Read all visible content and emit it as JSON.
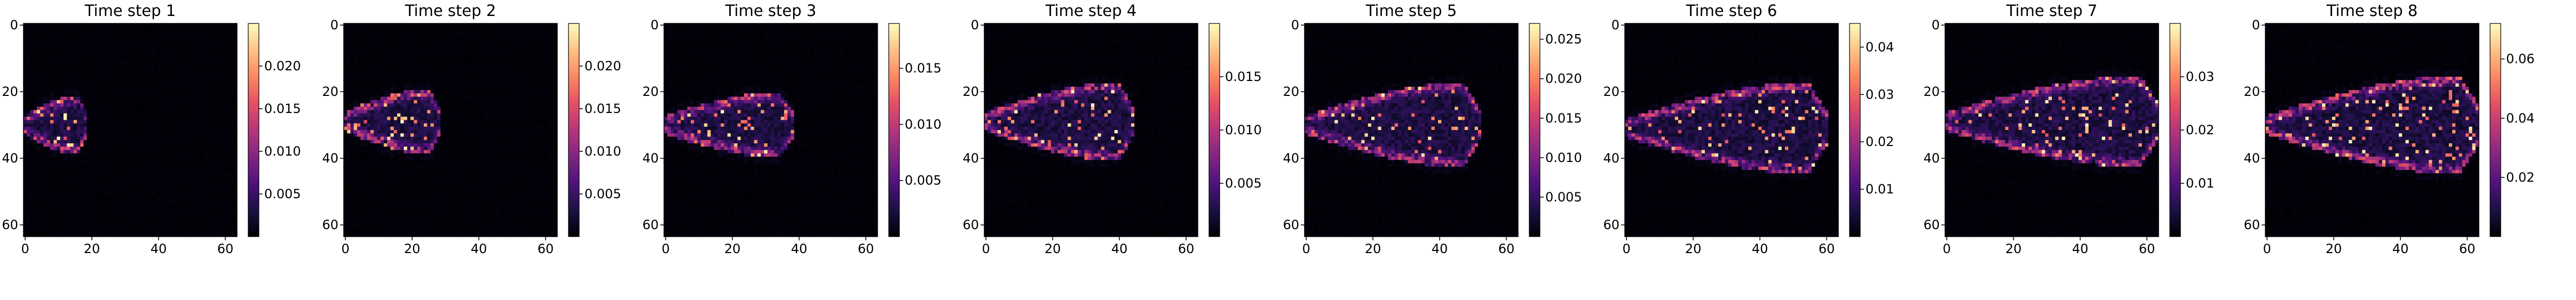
{
  "chart_data": [
    {
      "type": "heatmap",
      "title": "Time step 1",
      "xticks": [
        0,
        20,
        40,
        60
      ],
      "yticks": [
        0,
        20,
        40,
        60
      ],
      "grid_size": 64,
      "colormap": "magma",
      "colorbar": {
        "range": [
          0,
          0.025
        ],
        "ticks": [
          0.005,
          0.01,
          0.015,
          0.02
        ],
        "tick_labels": [
          "0.005",
          "0.010",
          "0.015",
          "0.020"
        ]
      },
      "front_x": 18,
      "center_y": 30,
      "peak": 0.025,
      "head_half_width": 9
    },
    {
      "type": "heatmap",
      "title": "Time step 2",
      "xticks": [
        0,
        20,
        40,
        60
      ],
      "yticks": [
        0,
        20,
        40,
        60
      ],
      "grid_size": 64,
      "colormap": "magma",
      "colorbar": {
        "range": [
          0,
          0.025
        ],
        "ticks": [
          0.005,
          0.01,
          0.015,
          0.02
        ],
        "tick_labels": [
          "0.005",
          "0.010",
          "0.015",
          "0.020"
        ]
      },
      "front_x": 28,
      "center_y": 29,
      "peak": 0.025,
      "head_half_width": 10
    },
    {
      "type": "heatmap",
      "title": "Time step 3",
      "xticks": [
        0,
        20,
        40,
        60
      ],
      "yticks": [
        0,
        20,
        40,
        60
      ],
      "grid_size": 64,
      "colormap": "magma",
      "colorbar": {
        "range": [
          0,
          0.019
        ],
        "ticks": [
          0.005,
          0.01,
          0.015
        ],
        "tick_labels": [
          "0.005",
          "0.010",
          "0.015"
        ]
      },
      "front_x": 38,
      "center_y": 30,
      "peak": 0.019,
      "head_half_width": 10
    },
    {
      "type": "heatmap",
      "title": "Time step 4",
      "xticks": [
        0,
        20,
        40,
        60
      ],
      "yticks": [
        0,
        20,
        40,
        60
      ],
      "grid_size": 64,
      "colormap": "magma",
      "colorbar": {
        "range": [
          0,
          0.02
        ],
        "ticks": [
          0.005,
          0.01,
          0.015
        ],
        "tick_labels": [
          "0.005",
          "0.010",
          "0.015"
        ]
      },
      "front_x": 44,
      "center_y": 29,
      "peak": 0.02,
      "head_half_width": 12
    },
    {
      "type": "heatmap",
      "title": "Time step 5",
      "xticks": [
        0,
        20,
        40,
        60
      ],
      "yticks": [
        0,
        20,
        40,
        60
      ],
      "grid_size": 64,
      "colormap": "magma",
      "colorbar": {
        "range": [
          0,
          0.027
        ],
        "ticks": [
          0.005,
          0.01,
          0.015,
          0.02,
          0.025
        ],
        "tick_labels": [
          "0.005",
          "0.010",
          "0.015",
          "0.020",
          "0.025"
        ]
      },
      "front_x": 52,
      "center_y": 30,
      "peak": 0.027,
      "head_half_width": 13
    },
    {
      "type": "heatmap",
      "title": "Time step 6",
      "xticks": [
        0,
        20,
        40,
        60
      ],
      "yticks": [
        0,
        20,
        40,
        60
      ],
      "grid_size": 64,
      "colormap": "magma",
      "colorbar": {
        "range": [
          0,
          0.045
        ],
        "ticks": [
          0.01,
          0.02,
          0.03,
          0.04
        ],
        "tick_labels": [
          "0.01",
          "0.02",
          "0.03",
          "0.04"
        ]
      },
      "front_x": 60,
      "center_y": 31,
      "peak": 0.045,
      "head_half_width": 14
    },
    {
      "type": "heatmap",
      "title": "Time step 7",
      "xticks": [
        0,
        20,
        40,
        60
      ],
      "yticks": [
        0,
        20,
        40,
        60
      ],
      "grid_size": 64,
      "colormap": "magma",
      "colorbar": {
        "range": [
          0,
          0.04
        ],
        "ticks": [
          0.01,
          0.02,
          0.03
        ],
        "tick_labels": [
          "0.01",
          "0.02",
          "0.03"
        ]
      },
      "front_x": 64,
      "center_y": 29,
      "peak": 0.04,
      "head_half_width": 14
    },
    {
      "type": "heatmap",
      "title": "Time step 8",
      "xticks": [
        0,
        20,
        40,
        60
      ],
      "yticks": [
        0,
        20,
        40,
        60
      ],
      "grid_size": 64,
      "colormap": "magma",
      "colorbar": {
        "range": [
          0,
          0.072
        ],
        "ticks": [
          0.02,
          0.04,
          0.06
        ],
        "tick_labels": [
          "0.02",
          "0.04",
          "0.06"
        ]
      },
      "front_x": 64,
      "center_y": 30,
      "peak": 0.072,
      "head_half_width": 15
    }
  ]
}
